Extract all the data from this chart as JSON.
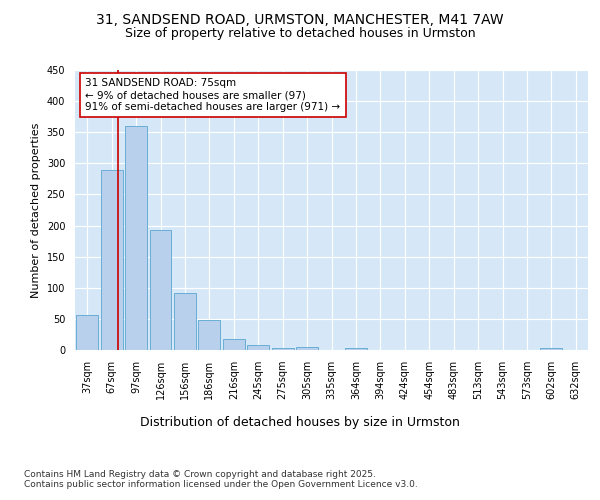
{
  "title1": "31, SANDSEND ROAD, URMSTON, MANCHESTER, M41 7AW",
  "title2": "Size of property relative to detached houses in Urmston",
  "xlabel": "Distribution of detached houses by size in Urmston",
  "ylabel": "Number of detached properties",
  "bar_labels": [
    "37sqm",
    "67sqm",
    "97sqm",
    "126sqm",
    "156sqm",
    "186sqm",
    "216sqm",
    "245sqm",
    "275sqm",
    "305sqm",
    "335sqm",
    "364sqm",
    "394sqm",
    "424sqm",
    "454sqm",
    "483sqm",
    "513sqm",
    "543sqm",
    "573sqm",
    "602sqm",
    "632sqm"
  ],
  "bar_values": [
    57,
    290,
    360,
    193,
    92,
    49,
    18,
    8,
    4,
    5,
    0,
    4,
    0,
    0,
    0,
    0,
    0,
    0,
    0,
    4,
    0
  ],
  "bar_color": "#b8d0eb",
  "bar_edge_color": "#6aaed6",
  "vline_x": 1.27,
  "vline_color": "#cc0000",
  "annotation_text": "31 SANDSEND ROAD: 75sqm\n← 9% of detached houses are smaller (97)\n91% of semi-detached houses are larger (971) →",
  "annotation_box_color": "#ffffff",
  "annotation_box_edge": "#cc0000",
  "ylim": [
    0,
    450
  ],
  "yticks": [
    0,
    50,
    100,
    150,
    200,
    250,
    300,
    350,
    400,
    450
  ],
  "background_color": "#d6e8f7",
  "grid_color": "#ffffff",
  "footer": "Contains HM Land Registry data © Crown copyright and database right 2025.\nContains public sector information licensed under the Open Government Licence v3.0.",
  "title1_fontsize": 10,
  "title2_fontsize": 9,
  "xlabel_fontsize": 9,
  "ylabel_fontsize": 8,
  "tick_fontsize": 7,
  "annotation_fontsize": 7.5,
  "footer_fontsize": 6.5
}
